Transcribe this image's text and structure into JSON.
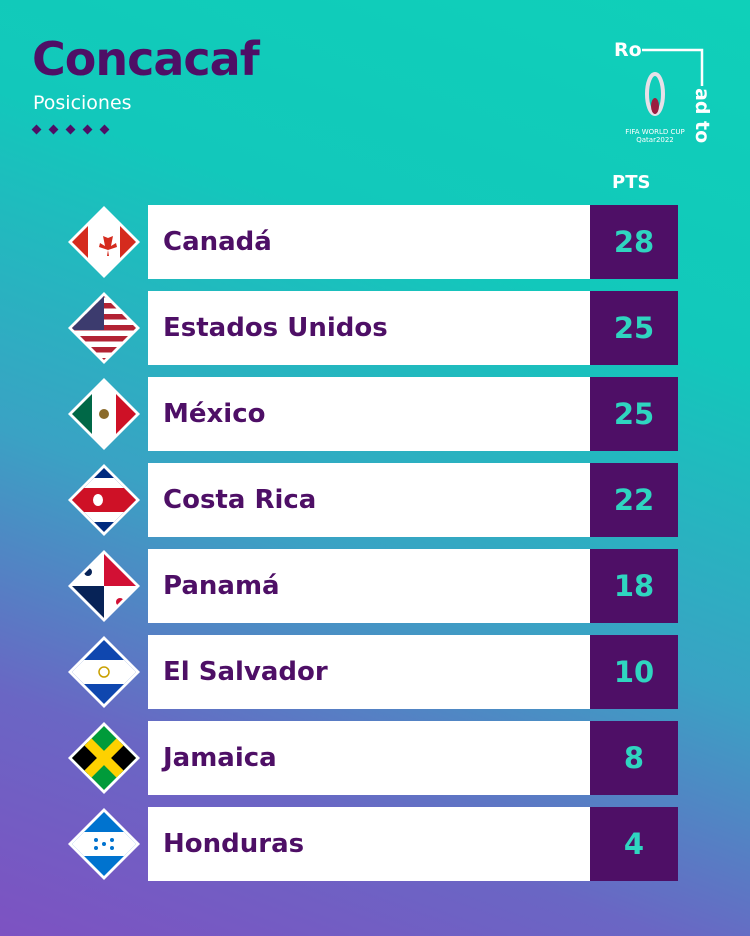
{
  "header": {
    "title": "Concacaf",
    "subtitle": "Posiciones",
    "logo_text": "Road to",
    "logo_caption_1": "FIFA WORLD CUP",
    "logo_caption_2": "Qatar2022"
  },
  "table": {
    "points_header": "PTS",
    "rows": [
      {
        "team": "Canadá",
        "points": "28",
        "flag": "canada-flag"
      },
      {
        "team": "Estados Unidos",
        "points": "25",
        "flag": "usa-flag"
      },
      {
        "team": "México",
        "points": "25",
        "flag": "mexico-flag"
      },
      {
        "team": "Costa Rica",
        "points": "22",
        "flag": "costa-rica-flag"
      },
      {
        "team": "Panamá",
        "points": "18",
        "flag": "panama-flag"
      },
      {
        "team": "El Salvador",
        "points": "10",
        "flag": "el-salvador-flag"
      },
      {
        "team": "Jamaica",
        "points": "8",
        "flag": "jamaica-flag"
      },
      {
        "team": "Honduras",
        "points": "4",
        "flag": "honduras-flag"
      }
    ]
  },
  "colors": {
    "primary": "#4e0f66",
    "accent": "#2fd5c0"
  }
}
